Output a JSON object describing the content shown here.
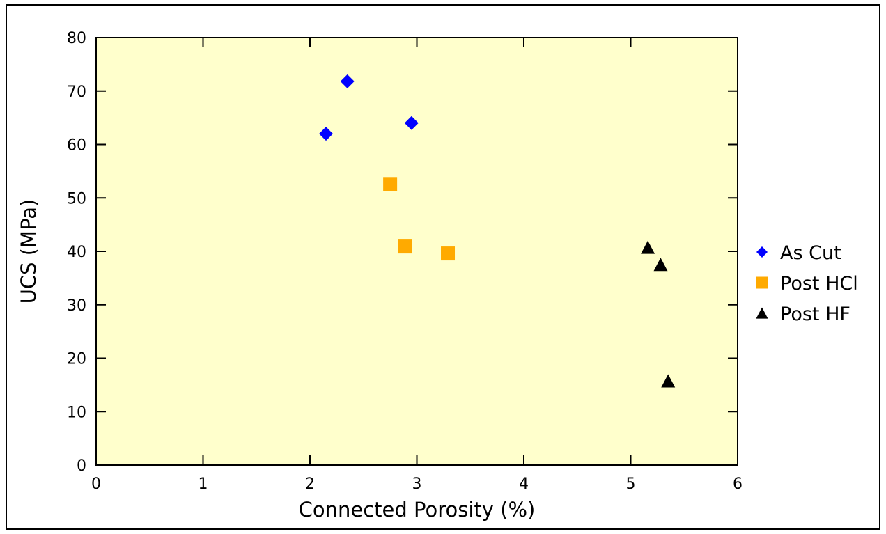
{
  "chart_data": {
    "type": "scatter",
    "title": "",
    "xlabel": "Connected Porosity (%)",
    "ylabel": "UCS (MPa)",
    "xlim": [
      0,
      6
    ],
    "ylim": [
      0,
      80
    ],
    "xticks": [
      0,
      1,
      2,
      3,
      4,
      5,
      6
    ],
    "yticks": [
      0,
      10,
      20,
      30,
      40,
      50,
      60,
      70,
      80
    ],
    "grid": false,
    "plot_background": "#ffffcc",
    "legend_position": "right",
    "series": [
      {
        "name": "As Cut",
        "marker": "diamond",
        "color": "#0000ff",
        "points": [
          [
            2.15,
            62.0
          ],
          [
            2.35,
            71.8
          ],
          [
            2.95,
            64.0
          ]
        ]
      },
      {
        "name": "Post HCl",
        "marker": "square",
        "color": "#ffaa00",
        "points": [
          [
            2.75,
            52.6
          ],
          [
            2.89,
            40.9
          ],
          [
            3.29,
            39.6
          ]
        ]
      },
      {
        "name": "Post HF",
        "marker": "triangle",
        "color": "#000000",
        "points": [
          [
            5.16,
            40.7
          ],
          [
            5.28,
            37.5
          ],
          [
            5.35,
            15.7
          ]
        ]
      }
    ]
  }
}
